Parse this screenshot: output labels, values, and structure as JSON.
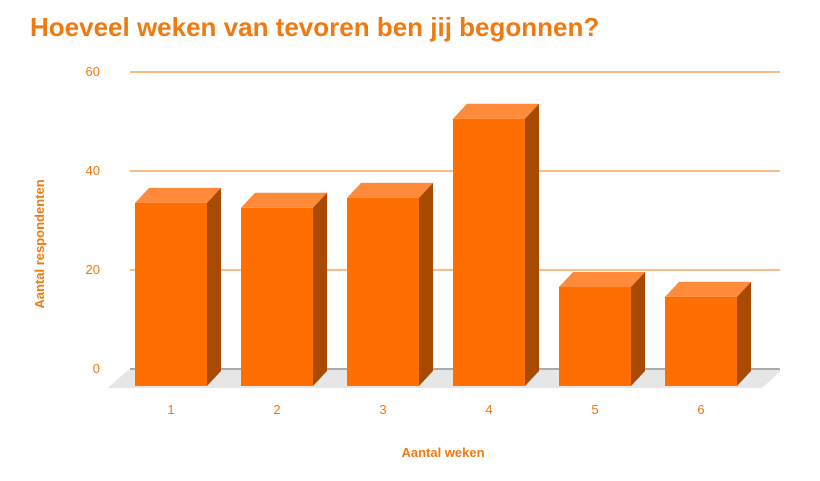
{
  "chart_data": {
    "type": "bar",
    "title": "Hoeveel weken van tevoren ben jij begonnen?",
    "xlabel": "Aantal weken",
    "ylabel": "Aantal respondenten",
    "categories": [
      "1",
      "2",
      "3",
      "4",
      "5",
      "6"
    ],
    "values": [
      37,
      36,
      38,
      54,
      20,
      18
    ],
    "ylim": [
      0,
      60
    ],
    "yticks": [
      "0",
      "20",
      "40",
      "60"
    ],
    "grid": true,
    "legend": "none",
    "style": "3d",
    "colors": {
      "bar_front": "#ff6f00",
      "bar_top": "#ff8a3a",
      "bar_side": "#a84a00",
      "grid": "#f07a10",
      "text": "#f07a10",
      "floor": "#e6e6e6"
    }
  }
}
